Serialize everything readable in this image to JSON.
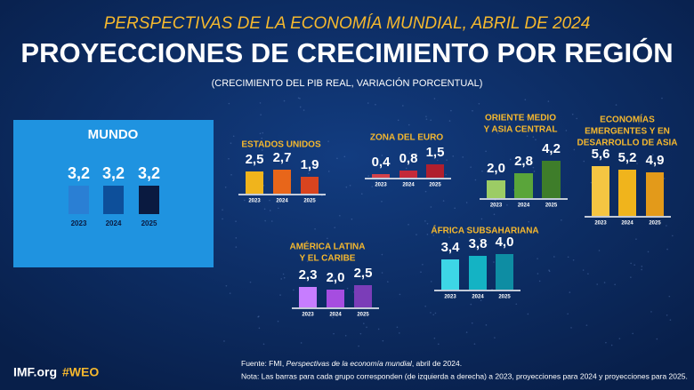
{
  "header": {
    "kicker": "PERSPECTIVAS DE LA ECONOMÍA MUNDIAL, ABRIL DE 2024",
    "title": "PROYECCIONES DE CRECIMIENTO POR REGIÓN",
    "subtitle": "(CRECIMIENTO DEL PIB REAL, VARIACIÓN PORCENTUAL)"
  },
  "footer": {
    "site": "IMF.org",
    "tag": "#WEO",
    "source": [
      "Fuente: FMI, ",
      "Perspectivas de la economía mundial",
      ", abril de 2024."
    ],
    "note": "Nota: Las barras para cada grupo corresponden (de izquierda a derecha) a 2023, proyecciones para 2024 y proyecciones para 2025."
  },
  "chart_data": [
    {
      "type": "bar",
      "title": [
        "MUNDO"
      ],
      "categories": [
        "2023",
        "2024",
        "2025"
      ],
      "values": [
        3.2,
        3.2,
        3.2
      ],
      "value_labels": [
        "3,2",
        "3,2",
        "3,2"
      ],
      "colors": [
        "#2a7fd4",
        "#0d4f9a",
        "#0a1a40"
      ]
    },
    {
      "type": "bar",
      "title": [
        "ESTADOS UNIDOS"
      ],
      "categories": [
        "2023",
        "2024",
        "2025"
      ],
      "values": [
        2.5,
        2.7,
        1.9
      ],
      "value_labels": [
        "2,5",
        "2,7",
        "1,9"
      ],
      "colors": [
        "#f0b41c",
        "#e8661a",
        "#d9441f"
      ]
    },
    {
      "type": "bar",
      "title": [
        "ZONA DEL EURO"
      ],
      "categories": [
        "2023",
        "2024",
        "2025"
      ],
      "values": [
        0.4,
        0.8,
        1.5
      ],
      "value_labels": [
        "0,4",
        "0,8",
        "1,5"
      ],
      "colors": [
        "#d3424a",
        "#c42a3a",
        "#b01f2e"
      ]
    },
    {
      "type": "bar",
      "title": [
        "ORIENTE MEDIO",
        "Y ASIA CENTRAL"
      ],
      "categories": [
        "2023",
        "2024",
        "2025"
      ],
      "values": [
        2.0,
        2.8,
        4.2
      ],
      "value_labels": [
        "2,0",
        "2,8",
        "4,2"
      ],
      "colors": [
        "#9ccc65",
        "#5aa53a",
        "#3e7d2a"
      ]
    },
    {
      "type": "bar",
      "title": [
        "ECONOMÍAS",
        "EMERGENTES Y EN",
        "DESARROLLO DE ASIA"
      ],
      "categories": [
        "2023",
        "2024",
        "2025"
      ],
      "values": [
        5.6,
        5.2,
        4.9
      ],
      "value_labels": [
        "5,6",
        "5,2",
        "4,9"
      ],
      "colors": [
        "#f5c542",
        "#f0b41c",
        "#e39a1a"
      ]
    },
    {
      "type": "bar",
      "title": [
        "ÁFRICA SUBSAHARIANA"
      ],
      "categories": [
        "2023",
        "2024",
        "2025"
      ],
      "values": [
        3.4,
        3.8,
        4.0
      ],
      "value_labels": [
        "3,4",
        "3,8",
        "4,0"
      ],
      "colors": [
        "#3dd6e6",
        "#14b3c4",
        "#0e8da3"
      ]
    },
    {
      "type": "bar",
      "title": [
        "AMÉRICA LATINA",
        "Y EL CARIBE"
      ],
      "categories": [
        "2023",
        "2024",
        "2025"
      ],
      "values": [
        2.3,
        2.0,
        2.5
      ],
      "value_labels": [
        "2,3",
        "2,0",
        "2,5"
      ],
      "colors": [
        "#c77dff",
        "#a64de0",
        "#7b3db8"
      ]
    }
  ]
}
